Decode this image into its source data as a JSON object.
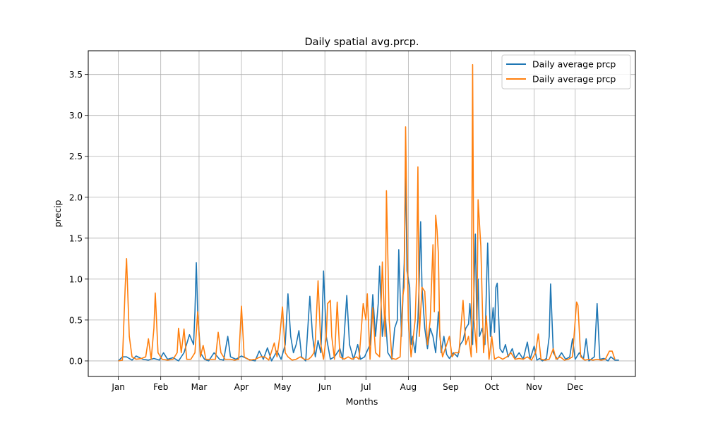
{
  "chart_data": {
    "type": "line",
    "title": "Daily spatial avg.prcp.",
    "xlabel": "Months",
    "ylabel": "precip",
    "x_ticks": [
      "Jan",
      "Feb",
      "Mar",
      "Apr",
      "May",
      "Jun",
      "Jul",
      "Aug",
      "Sep",
      "Oct",
      "Nov",
      "Dec"
    ],
    "y_ticks": [
      "0.0",
      "0.5",
      "1.0",
      "1.5",
      "2.0",
      "2.5",
      "3.0",
      "3.5"
    ],
    "xlim": [
      -22,
      378
    ],
    "ylim": [
      -0.19,
      3.79
    ],
    "grid": true,
    "legend_position": "top-right",
    "colors": [
      "#1f77b4",
      "#ff7f0e"
    ],
    "series": [
      {
        "name": "Daily average prcp",
        "points": [
          [
            0,
            0
          ],
          [
            3,
            0.05
          ],
          [
            6,
            0.05
          ],
          [
            10,
            0.01
          ],
          [
            13,
            0.06
          ],
          [
            18,
            0.02
          ],
          [
            22,
            0.01
          ],
          [
            26,
            0.03
          ],
          [
            30,
            0.01
          ],
          [
            33,
            0.1
          ],
          [
            36,
            0.02
          ],
          [
            40,
            0.04
          ],
          [
            44,
            0
          ],
          [
            48,
            0.1
          ],
          [
            52,
            0.32
          ],
          [
            55,
            0.2
          ],
          [
            56,
            0.6
          ],
          [
            57,
            1.2
          ],
          [
            58,
            0.6
          ],
          [
            60,
            0.1
          ],
          [
            63,
            0.02
          ],
          [
            66,
            0
          ],
          [
            70,
            0.1
          ],
          [
            74,
            0.02
          ],
          [
            77,
            0.01
          ],
          [
            80,
            0.3
          ],
          [
            82,
            0.05
          ],
          [
            86,
            0.02
          ],
          [
            90,
            0.06
          ],
          [
            95,
            0.02
          ],
          [
            100,
            0
          ],
          [
            103,
            0.12
          ],
          [
            106,
            0.02
          ],
          [
            109,
            0.16
          ],
          [
            112,
            0
          ],
          [
            116,
            0.12
          ],
          [
            119,
            0.02
          ],
          [
            122,
            0.2
          ],
          [
            124,
            0.82
          ],
          [
            126,
            0.3
          ],
          [
            128,
            0.1
          ],
          [
            130,
            0.2
          ],
          [
            132,
            0.37
          ],
          [
            134,
            0.05
          ],
          [
            137,
            0
          ],
          [
            140,
            0.79
          ],
          [
            142,
            0.3
          ],
          [
            144,
            0.05
          ],
          [
            146,
            0.25
          ],
          [
            148,
            0.1
          ],
          [
            149,
            0.5
          ],
          [
            150,
            1.1
          ],
          [
            152,
            0.3
          ],
          [
            155,
            0.02
          ],
          [
            158,
            0.05
          ],
          [
            162,
            0.15
          ],
          [
            164,
            0.02
          ],
          [
            167,
            0.8
          ],
          [
            169,
            0.2
          ],
          [
            172,
            0.02
          ],
          [
            175,
            0.2
          ],
          [
            177,
            0.02
          ],
          [
            180,
            0.05
          ],
          [
            184,
            0.2
          ],
          [
            186,
            0.81
          ],
          [
            188,
            0.3
          ],
          [
            190,
            0.7
          ],
          [
            191,
            1.16
          ],
          [
            193,
            0.3
          ],
          [
            195,
            0.6
          ],
          [
            197,
            0.1
          ],
          [
            200,
            0.02
          ],
          [
            202,
            0.4
          ],
          [
            204,
            0.5
          ],
          [
            205,
            1.36
          ],
          [
            207,
            0.3
          ],
          [
            209,
            1.2
          ],
          [
            210,
            2.38
          ],
          [
            211,
            1.1
          ],
          [
            213,
            0.9
          ],
          [
            214,
            0.2
          ],
          [
            215,
            0.3
          ],
          [
            217,
            0.1
          ],
          [
            219,
            0.5
          ],
          [
            220,
            1.0
          ],
          [
            221,
            1.7
          ],
          [
            222,
            0.9
          ],
          [
            224,
            0.4
          ],
          [
            226,
            0.15
          ],
          [
            228,
            0.4
          ],
          [
            230,
            0.3
          ],
          [
            232,
            0.1
          ],
          [
            234,
            0.6
          ],
          [
            236,
            0.1
          ],
          [
            238,
            0.3
          ],
          [
            240,
            0.08
          ],
          [
            242,
            0.03
          ],
          [
            245,
            0.1
          ],
          [
            248,
            0.05
          ],
          [
            250,
            0.2
          ],
          [
            252,
            0.25
          ],
          [
            254,
            0.4
          ],
          [
            256,
            0.45
          ],
          [
            257,
            0.7
          ],
          [
            259,
            0.2
          ],
          [
            261,
            1.55
          ],
          [
            262,
            0.5
          ],
          [
            263,
            1.0
          ],
          [
            264,
            0.3
          ],
          [
            266,
            0.4
          ],
          [
            268,
            0.2
          ],
          [
            270,
            1.44
          ],
          [
            272,
            0.3
          ],
          [
            274,
            0.65
          ],
          [
            275,
            0.35
          ],
          [
            276,
            0.9
          ],
          [
            277,
            0.95
          ],
          [
            279,
            0.15
          ],
          [
            281,
            0.1
          ],
          [
            283,
            0.2
          ],
          [
            285,
            0.05
          ],
          [
            288,
            0.15
          ],
          [
            290,
            0.03
          ],
          [
            293,
            0.1
          ],
          [
            296,
            0.02
          ],
          [
            299,
            0.23
          ],
          [
            301,
            0.02
          ],
          [
            304,
            0.18
          ],
          [
            306,
            0.01
          ],
          [
            308,
            0.03
          ],
          [
            310,
            0
          ],
          [
            313,
            0.03
          ],
          [
            315,
            0.3
          ],
          [
            316,
            0.94
          ],
          [
            318,
            0.1
          ],
          [
            321,
            0.02
          ],
          [
            324,
            0.1
          ],
          [
            327,
            0.02
          ],
          [
            330,
            0.05
          ],
          [
            332,
            0.27
          ],
          [
            334,
            0.02
          ],
          [
            337,
            0.1
          ],
          [
            340,
            0.02
          ],
          [
            342,
            0.27
          ],
          [
            344,
            0
          ],
          [
            348,
            0.05
          ],
          [
            350,
            0.7
          ],
          [
            352,
            0.02
          ],
          [
            355,
            0.03
          ],
          [
            358,
            0
          ],
          [
            360,
            0.05
          ],
          [
            363,
            0.01
          ],
          [
            366,
            0.01
          ]
        ]
      },
      {
        "name": "Daily average prcp",
        "points": [
          [
            0,
            0
          ],
          [
            3,
            0.01
          ],
          [
            5,
            0.9
          ],
          [
            6,
            1.25
          ],
          [
            8,
            0.3
          ],
          [
            10,
            0.05
          ],
          [
            13,
            0.02
          ],
          [
            17,
            0.03
          ],
          [
            20,
            0.05
          ],
          [
            22,
            0.27
          ],
          [
            24,
            0.02
          ],
          [
            26,
            0.4
          ],
          [
            27,
            0.83
          ],
          [
            29,
            0.1
          ],
          [
            32,
            0.02
          ],
          [
            36,
            0.01
          ],
          [
            40,
            0.02
          ],
          [
            43,
            0.1
          ],
          [
            44,
            0.4
          ],
          [
            46,
            0.1
          ],
          [
            48,
            0.39
          ],
          [
            50,
            0.02
          ],
          [
            53,
            0.02
          ],
          [
            56,
            0.1
          ],
          [
            58,
            0.6
          ],
          [
            60,
            0.05
          ],
          [
            62,
            0.19
          ],
          [
            64,
            0.02
          ],
          [
            68,
            0.02
          ],
          [
            71,
            0.02
          ],
          [
            73,
            0.35
          ],
          [
            75,
            0.1
          ],
          [
            78,
            0.02
          ],
          [
            82,
            0.02
          ],
          [
            85,
            0.01
          ],
          [
            88,
            0.02
          ],
          [
            90,
            0.67
          ],
          [
            92,
            0.05
          ],
          [
            96,
            0.01
          ],
          [
            100,
            0.02
          ],
          [
            104,
            0.05
          ],
          [
            107,
            0.05
          ],
          [
            110,
            0.01
          ],
          [
            114,
            0.22
          ],
          [
            116,
            0.05
          ],
          [
            118,
            0.3
          ],
          [
            120,
            0.66
          ],
          [
            122,
            0.1
          ],
          [
            124,
            0.05
          ],
          [
            127,
            0.01
          ],
          [
            130,
            0.02
          ],
          [
            133,
            0.05
          ],
          [
            136,
            0.02
          ],
          [
            139,
            0.02
          ],
          [
            141,
            0.05
          ],
          [
            143,
            0.1
          ],
          [
            144,
            0.25
          ],
          [
            146,
            0.98
          ],
          [
            148,
            0.2
          ],
          [
            150,
            0.02
          ],
          [
            152,
            0.3
          ],
          [
            153,
            0.7
          ],
          [
            155,
            0.74
          ],
          [
            156,
            0.3
          ],
          [
            158,
            0.02
          ],
          [
            160,
            0.72
          ],
          [
            162,
            0.05
          ],
          [
            165,
            0.02
          ],
          [
            168,
            0.05
          ],
          [
            171,
            0.02
          ],
          [
            174,
            0.05
          ],
          [
            176,
            0.02
          ],
          [
            179,
            0.7
          ],
          [
            181,
            0.5
          ],
          [
            182,
            0.82
          ],
          [
            184,
            0.02
          ],
          [
            186,
            0.65
          ],
          [
            188,
            0.1
          ],
          [
            191,
            0.05
          ],
          [
            193,
            1.21
          ],
          [
            195,
            0.3
          ],
          [
            196,
            2.08
          ],
          [
            198,
            0.5
          ],
          [
            200,
            0.03
          ],
          [
            203,
            0.02
          ],
          [
            206,
            0.05
          ],
          [
            208,
            0.8
          ],
          [
            209,
            0.9
          ],
          [
            210,
            2.86
          ],
          [
            212,
            0.5
          ],
          [
            214,
            0.05
          ],
          [
            217,
            0.5
          ],
          [
            218,
            1.02
          ],
          [
            219,
            2.37
          ],
          [
            220,
            0.3
          ],
          [
            222,
            0.9
          ],
          [
            224,
            0.85
          ],
          [
            226,
            0.2
          ],
          [
            228,
            0.5
          ],
          [
            230,
            1.42
          ],
          [
            231,
            0.6
          ],
          [
            232,
            1.78
          ],
          [
            233,
            1.6
          ],
          [
            234,
            1.3
          ],
          [
            235,
            0.3
          ],
          [
            237,
            0.05
          ],
          [
            240,
            0.2
          ],
          [
            242,
            0.3
          ],
          [
            244,
            0.05
          ],
          [
            246,
            0.1
          ],
          [
            249,
            0.1
          ],
          [
            252,
            0.74
          ],
          [
            254,
            0.2
          ],
          [
            256,
            0.3
          ],
          [
            258,
            0.05
          ],
          [
            259,
            3.62
          ],
          [
            260,
            0.5
          ],
          [
            262,
            0.1
          ],
          [
            263,
            1.97
          ],
          [
            265,
            1.4
          ],
          [
            267,
            0.1
          ],
          [
            269,
            0.55
          ],
          [
            271,
            0.02
          ],
          [
            273,
            0.3
          ],
          [
            275,
            0.02
          ],
          [
            278,
            0.05
          ],
          [
            281,
            0.02
          ],
          [
            284,
            0.05
          ],
          [
            287,
            0.1
          ],
          [
            290,
            0.02
          ],
          [
            293,
            0.03
          ],
          [
            296,
            0.02
          ],
          [
            299,
            0.05
          ],
          [
            302,
            0.01
          ],
          [
            305,
            0.1
          ],
          [
            307,
            0.33
          ],
          [
            309,
            0.02
          ],
          [
            312,
            0.01
          ],
          [
            315,
            0.02
          ],
          [
            318,
            0.15
          ],
          [
            320,
            0.02
          ],
          [
            323,
            0.05
          ],
          [
            326,
            0.01
          ],
          [
            329,
            0.02
          ],
          [
            332,
            0.05
          ],
          [
            335,
            0.72
          ],
          [
            336,
            0.68
          ],
          [
            338,
            0.05
          ],
          [
            341,
            0.01
          ],
          [
            344,
            0.02
          ],
          [
            347,
            0.01
          ],
          [
            350,
            0.02
          ],
          [
            353,
            0.01
          ],
          [
            356,
            0.02
          ],
          [
            359,
            0.12
          ],
          [
            361,
            0.12
          ],
          [
            363,
            0.02
          ]
        ]
      }
    ]
  }
}
